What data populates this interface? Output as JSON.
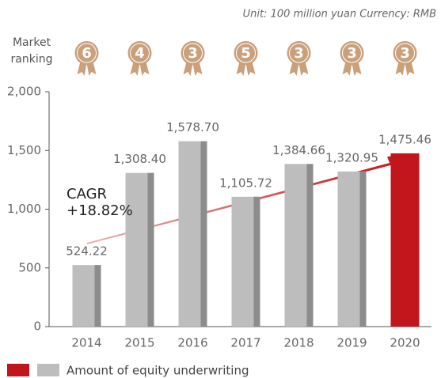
{
  "chart_data": {
    "type": "bar",
    "unit_note": "Unit: 100 million yuan Currency: RMB",
    "ranking_label": "Market ranking",
    "rankings": [
      6,
      4,
      3,
      5,
      3,
      3,
      3
    ],
    "categories": [
      "2014",
      "2015",
      "2016",
      "2017",
      "2018",
      "2019",
      "2020"
    ],
    "series": [
      {
        "name": "Amount of equity underwriting",
        "values": [
          524.22,
          1308.4,
          1578.7,
          1105.72,
          1384.66,
          1320.95,
          1475.46
        ],
        "value_labels": [
          "524.22",
          "1,308.40",
          "1,578.70",
          "1,105.72",
          "1,384.66",
          "1,320.95",
          "1,475.46"
        ],
        "colors": [
          "#bdbdbd",
          "#bdbdbd",
          "#bdbdbd",
          "#bdbdbd",
          "#bdbdbd",
          "#bdbdbd",
          "#c0161c"
        ]
      }
    ],
    "legend_colors": [
      "#c0161c",
      "#bdbdbd"
    ],
    "annotation": [
      "CAGR",
      "+18.82%"
    ],
    "ylim": [
      0,
      2000
    ],
    "yticks": [
      0,
      500,
      {
        "value": 1000,
        "label": "1,000"
      },
      {
        "value": 1500,
        "label": "1,500"
      },
      {
        "value": 2000,
        "label": "2,000"
      }
    ]
  }
}
